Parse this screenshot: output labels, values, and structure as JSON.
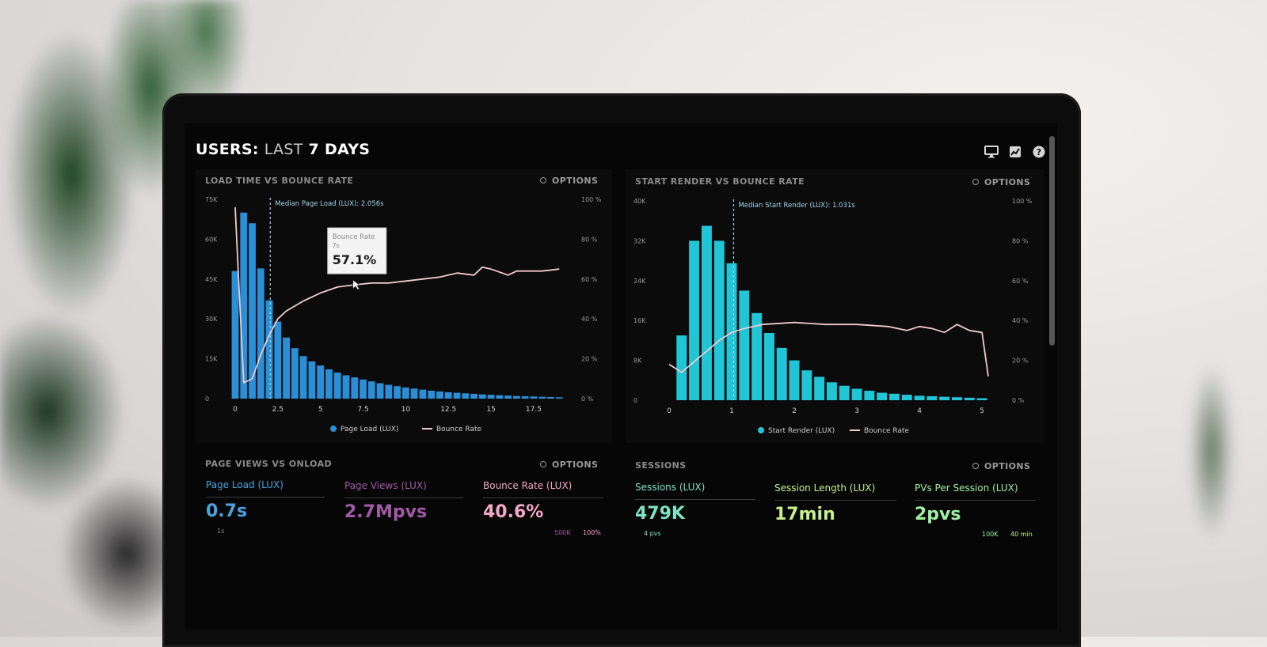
{
  "dashboard": {
    "title_prefix": "USERS:",
    "title_mid": "LAST",
    "title_suffix": "7 DAYS"
  },
  "header_icons": [
    "monitor-icon",
    "chart-icon",
    "help-icon"
  ],
  "colors": {
    "bar_blue": "#2a8fd6",
    "bar_cyan": "#20c6d6",
    "bounce_line": "#f0c9cf",
    "page_load": "#4aa3df",
    "page_views": "#a35aa6",
    "bounce_rate": "#f2a7c6",
    "sessions": "#7de3c6",
    "session_length": "#c8f08a",
    "pvs_per_session": "#9ff0a0"
  },
  "panels": {
    "load_time": {
      "title": "LOAD TIME VS BOUNCE RATE",
      "options_label": "OPTIONS",
      "median_label": "Median Page Load (LUX): 2.056s",
      "tooltip": {
        "label": "Bounce Rate",
        "x": "7s",
        "value": "57.1%"
      },
      "legend": {
        "bars": "Page Load (LUX)",
        "line": "Bounce Rate"
      }
    },
    "start_render": {
      "title": "START RENDER VS BOUNCE RATE",
      "options_label": "OPTIONS",
      "median_label": "Median Start Render (LUX): 1.031s",
      "legend": {
        "bars": "Start Render (LUX)",
        "line": "Bounce Rate"
      }
    },
    "page_views": {
      "title": "PAGE VIEWS VS ONLOAD",
      "options_label": "OPTIONS",
      "metrics": [
        {
          "label": "Page Load (LUX)",
          "value": "0.7s",
          "sub": "1s"
        },
        {
          "label": "Page Views (LUX)",
          "value": "2.7Mpvs",
          "sub": ""
        },
        {
          "label": "Bounce Rate (LUX)",
          "value": "40.6%",
          "sub": ""
        }
      ],
      "footer_a": "500K",
      "footer_b": "100%"
    },
    "sessions": {
      "title": "SESSIONS",
      "options_label": "OPTIONS",
      "metrics": [
        {
          "label": "Sessions (LUX)",
          "value": "479K",
          "sub": "4 pvs"
        },
        {
          "label": "Session Length (LUX)",
          "value": "17min",
          "sub": ""
        },
        {
          "label": "PVs Per Session (LUX)",
          "value": "2pvs",
          "sub": ""
        }
      ],
      "footer_a": "100K",
      "footer_b": "40 min"
    }
  },
  "chart_data": [
    {
      "type": "bar",
      "title": "LOAD TIME VS BOUNCE RATE",
      "x_ticks": [
        "0",
        "2.5",
        "5",
        "7.5",
        "10",
        "12.5",
        "15",
        "17.5"
      ],
      "y_left_ticks": [
        "0",
        "15K",
        "30K",
        "45K",
        "60K",
        "75K"
      ],
      "y_right_ticks": [
        "0 %",
        "20 %",
        "40 %",
        "60 %",
        "80 %",
        "100 %"
      ],
      "ylim": [
        0,
        75000
      ],
      "xlim": [
        0,
        19.5
      ],
      "median": 2.056,
      "series": [
        {
          "name": "Page Load (LUX)",
          "x": [
            0,
            0.5,
            1,
            1.5,
            2,
            2.5,
            3,
            3.5,
            4,
            4.5,
            5,
            5.5,
            6,
            6.5,
            7,
            7.5,
            8,
            8.5,
            9,
            9.5,
            10,
            10.5,
            11,
            11.5,
            12,
            12.5,
            13,
            13.5,
            14,
            14.5,
            15,
            15.5,
            16,
            16.5,
            17,
            17.5,
            18,
            18.5,
            19
          ],
          "values": [
            48000,
            70000,
            66000,
            49000,
            37000,
            29000,
            23000,
            19000,
            16000,
            14000,
            12500,
            11000,
            9800,
            8800,
            8000,
            7200,
            6500,
            5800,
            5200,
            4700,
            4200,
            3800,
            3400,
            3000,
            2700,
            2400,
            2200,
            2000,
            1800,
            1600,
            1450,
            1300,
            1150,
            1000,
            900,
            800,
            700,
            600,
            500
          ]
        },
        {
          "name": "Bounce Rate",
          "x": [
            0,
            0.2,
            0.5,
            1,
            1.5,
            2,
            2.5,
            3,
            4,
            5,
            6,
            7,
            8,
            9,
            10,
            11,
            12,
            13,
            14,
            14.5,
            15,
            16,
            16.5,
            17,
            18,
            19
          ],
          "values": [
            96,
            60,
            8,
            10,
            22,
            32,
            40,
            44,
            49,
            53,
            56,
            57.1,
            58,
            58,
            59,
            60,
            61,
            63,
            62,
            66,
            65,
            62,
            64,
            64,
            64,
            65
          ]
        }
      ]
    },
    {
      "type": "bar",
      "title": "START RENDER VS BOUNCE RATE",
      "x_ticks": [
        "0",
        "1",
        "2",
        "3",
        "4",
        "5"
      ],
      "y_left_ticks": [
        "0",
        "8K",
        "16K",
        "24K",
        "32K",
        "40K"
      ],
      "y_right_ticks": [
        "0 %",
        "20 %",
        "40 %",
        "60 %",
        "80 %",
        "100 %"
      ],
      "ylim": [
        0,
        40000
      ],
      "xlim": [
        0,
        5.1
      ],
      "median": 1.031,
      "series": [
        {
          "name": "Start Render (LUX)",
          "x": [
            0.2,
            0.4,
            0.6,
            0.8,
            1.0,
            1.2,
            1.4,
            1.6,
            1.8,
            2.0,
            2.2,
            2.4,
            2.6,
            2.8,
            3.0,
            3.2,
            3.4,
            3.6,
            3.8,
            4.0,
            4.2,
            4.4,
            4.6,
            4.8,
            5.0
          ],
          "values": [
            13000,
            32000,
            35000,
            32000,
            27500,
            22000,
            17500,
            13500,
            10500,
            8000,
            6000,
            4700,
            3600,
            2900,
            2300,
            1900,
            1500,
            1300,
            1100,
            900,
            800,
            700,
            600,
            500,
            400
          ]
        },
        {
          "name": "Bounce Rate",
          "x": [
            0,
            0.2,
            0.5,
            0.8,
            1.0,
            1.2,
            1.5,
            2.0,
            2.5,
            3.0,
            3.5,
            3.8,
            4.0,
            4.2,
            4.4,
            4.6,
            4.8,
            5.0,
            5.1
          ],
          "values": [
            18,
            14,
            22,
            30,
            34,
            36,
            38,
            39,
            38,
            38,
            37,
            35,
            37,
            36,
            34,
            38,
            35,
            34,
            12
          ]
        }
      ]
    }
  ]
}
